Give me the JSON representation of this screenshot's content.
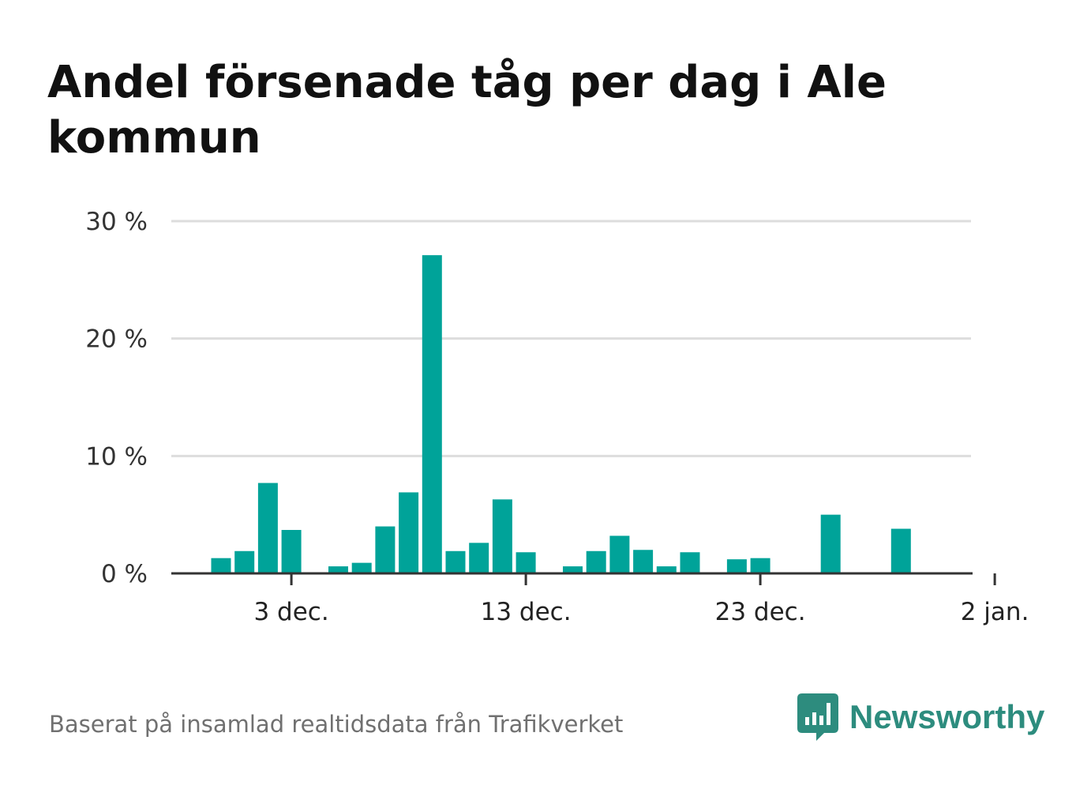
{
  "title": "Andel försenade tåg per dag i Ale kommun",
  "source": "Baserat på insamlad realtidsdata från Trafikverket",
  "brand": {
    "name": "Newsworthy",
    "icon": "newsworthy-logo-icon"
  },
  "colors": {
    "bar": "#00a399",
    "brand": "#2d8c7e",
    "grid": "#dddddd",
    "axis": "#333333"
  },
  "chart_data": {
    "type": "bar",
    "title": "Andel försenade tåg per dag i Ale kommun",
    "xlabel": "",
    "ylabel": "",
    "grid": true,
    "ylim": [
      0,
      30
    ],
    "yticks": [
      {
        "value": 0,
        "label": "0 %"
      },
      {
        "value": 10,
        "label": "10 %"
      },
      {
        "value": 20,
        "label": "20 %"
      },
      {
        "value": 30,
        "label": "30 %"
      }
    ],
    "xticks": [
      {
        "date": "2021-12-03",
        "label": "3 dec."
      },
      {
        "date": "2021-12-13",
        "label": "13 dec."
      },
      {
        "date": "2021-12-23",
        "label": "23 dec."
      },
      {
        "date": "2022-01-02",
        "label": "2 jan."
      }
    ],
    "xlim": [
      "2021-11-29",
      "2022-01-02"
    ],
    "series": [
      {
        "values": [
          {
            "date": "2021-11-30",
            "value": 1.3
          },
          {
            "date": "2021-12-01",
            "value": 1.9
          },
          {
            "date": "2021-12-02",
            "value": 7.7
          },
          {
            "date": "2021-12-03",
            "value": 3.7
          },
          {
            "date": "2021-12-05",
            "value": 0.6
          },
          {
            "date": "2021-12-06",
            "value": 0.9
          },
          {
            "date": "2021-12-07",
            "value": 4.0
          },
          {
            "date": "2021-12-08",
            "value": 6.9
          },
          {
            "date": "2021-12-09",
            "value": 27.1
          },
          {
            "date": "2021-12-10",
            "value": 1.9
          },
          {
            "date": "2021-12-11",
            "value": 2.6
          },
          {
            "date": "2021-12-12",
            "value": 6.3
          },
          {
            "date": "2021-12-13",
            "value": 1.8
          },
          {
            "date": "2021-12-15",
            "value": 0.6
          },
          {
            "date": "2021-12-16",
            "value": 1.9
          },
          {
            "date": "2021-12-17",
            "value": 3.2
          },
          {
            "date": "2021-12-18",
            "value": 2.0
          },
          {
            "date": "2021-12-19",
            "value": 0.6
          },
          {
            "date": "2021-12-20",
            "value": 1.8
          },
          {
            "date": "2021-12-22",
            "value": 1.2
          },
          {
            "date": "2021-12-23",
            "value": 1.3
          },
          {
            "date": "2021-12-26",
            "value": 5.0
          },
          {
            "date": "2021-12-29",
            "value": 3.8
          }
        ]
      }
    ]
  }
}
